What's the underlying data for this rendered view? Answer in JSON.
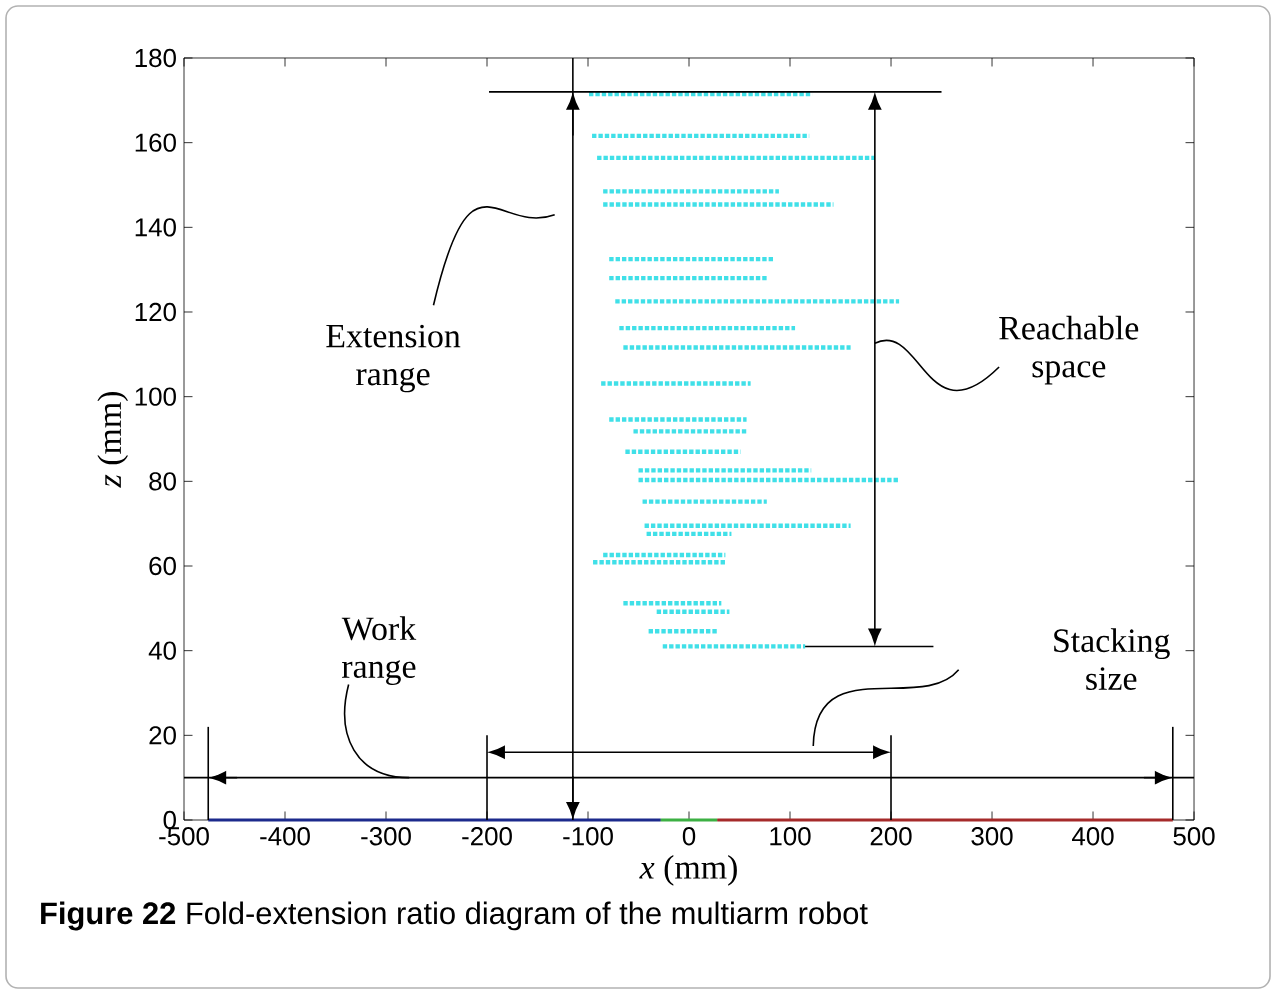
{
  "chart_data": {
    "type": "line",
    "xlabel": "*x* (mm)",
    "ylabel": "*z* (mm)",
    "xlim": [
      -500,
      500
    ],
    "ylim": [
      0,
      180
    ],
    "xticks": [
      -500,
      -400,
      -300,
      -200,
      -100,
      0,
      100,
      200,
      300,
      400,
      500
    ],
    "yticks": [
      0,
      20,
      40,
      60,
      80,
      100,
      120,
      140,
      160,
      180
    ],
    "ref_lines": [
      {
        "axis": "x",
        "value": -115,
        "color": "#000000"
      },
      {
        "axis": "y",
        "value": 10,
        "color": "#000000"
      }
    ],
    "grid": false,
    "marker": "none",
    "line_style": "dotted",
    "annotations": [
      "Extension range",
      "Reachable space",
      "Stacking size",
      {
        "text": "Work range",
        "x": -277,
        "y": 10
      },
      "**Figure 22** Fold-extension ratio diagram of the multiarm robot"
    ],
    "series": [
      {
        "color": "#40e0e8",
        "x": [
          -99,
          122
        ],
        "values": [
          171.5,
          171.5
        ]
      },
      {
        "color": "#40e0e8",
        "x": [
          -96,
          119
        ],
        "values": [
          161.6,
          161.6
        ]
      },
      {
        "color": "#40e0e8",
        "x": [
          -91,
          184
        ],
        "values": [
          156.4,
          156.4
        ]
      },
      {
        "color": "#40e0e8",
        "x": [
          -85,
          89
        ],
        "values": [
          148.5,
          148.5
        ]
      },
      {
        "color": "#40e0e8",
        "x": [
          -85,
          143
        ],
        "values": [
          145.4,
          145.4
        ]
      },
      {
        "color": "#40e0e8",
        "x": [
          -79,
          85
        ],
        "values": [
          132.5,
          132.5
        ]
      },
      {
        "color": "#40e0e8",
        "x": [
          -79,
          77
        ],
        "values": [
          128,
          128
        ]
      },
      {
        "color": "#40e0e8",
        "x": [
          -73,
          208
        ],
        "values": [
          122.5,
          122.5
        ]
      },
      {
        "color": "#40e0e8",
        "x": [
          -69,
          105
        ],
        "values": [
          116.2,
          116.2
        ]
      },
      {
        "color": "#40e0e8",
        "x": [
          -65,
          160
        ],
        "values": [
          111.6,
          111.6
        ]
      },
      {
        "color": "#40e0e8",
        "x": [
          -87,
          61
        ],
        "values": [
          103.1,
          103.1
        ]
      },
      {
        "color": "#40e0e8",
        "x": [
          -79,
          57
        ],
        "values": [
          94.6,
          94.6
        ]
      },
      {
        "color": "#40e0e8",
        "x": [
          -55,
          57
        ],
        "values": [
          91.8,
          91.8
        ]
      },
      {
        "color": "#40e0e8",
        "x": [
          -63,
          51
        ],
        "values": [
          87,
          87
        ]
      },
      {
        "color": "#40e0e8",
        "x": [
          -50,
          121
        ],
        "values": [
          82.6,
          82.6
        ]
      },
      {
        "color": "#40e0e8",
        "x": [
          -50,
          208
        ],
        "values": [
          80.3,
          80.3
        ]
      },
      {
        "color": "#40e0e8",
        "x": [
          -46,
          77
        ],
        "values": [
          75.2,
          75.2
        ]
      },
      {
        "color": "#40e0e8",
        "x": [
          -44,
          160
        ],
        "values": [
          69.5,
          69.5
        ]
      },
      {
        "color": "#40e0e8",
        "x": [
          -42,
          42
        ],
        "values": [
          67.6,
          67.6
        ]
      },
      {
        "color": "#40e0e8",
        "x": [
          -85,
          36
        ],
        "values": [
          62.6,
          62.6
        ]
      },
      {
        "color": "#40e0e8",
        "x": [
          -95,
          36
        ],
        "values": [
          60.9,
          60.9
        ]
      },
      {
        "color": "#40e0e8",
        "x": [
          -65,
          32
        ],
        "values": [
          51.2,
          51.2
        ]
      },
      {
        "color": "#40e0e8",
        "x": [
          -32,
          40
        ],
        "values": [
          49.2,
          49.2
        ]
      },
      {
        "color": "#40e0e8",
        "x": [
          -40,
          28
        ],
        "values": [
          44.6,
          44.6
        ]
      },
      {
        "color": "#40e0e8",
        "x": [
          -26,
          115
        ],
        "values": [
          41,
          41
        ]
      },
      {
        "color": "#000000",
        "line_style": "solid",
        "x": [
          -198,
          250
        ],
        "values": [
          172,
          172
        ]
      },
      {
        "color": "#1c2a8c",
        "line_style": "solid",
        "x": [
          -476,
          -28
        ],
        "values": [
          0,
          0
        ]
      },
      {
        "color": "#3cb043",
        "line_style": "solid",
        "x": [
          -28,
          28
        ],
        "values": [
          0,
          0
        ]
      },
      {
        "color": "#a52a2a",
        "line_style": "solid",
        "x": [
          28,
          479
        ],
        "values": [
          0,
          0
        ]
      }
    ]
  }
}
